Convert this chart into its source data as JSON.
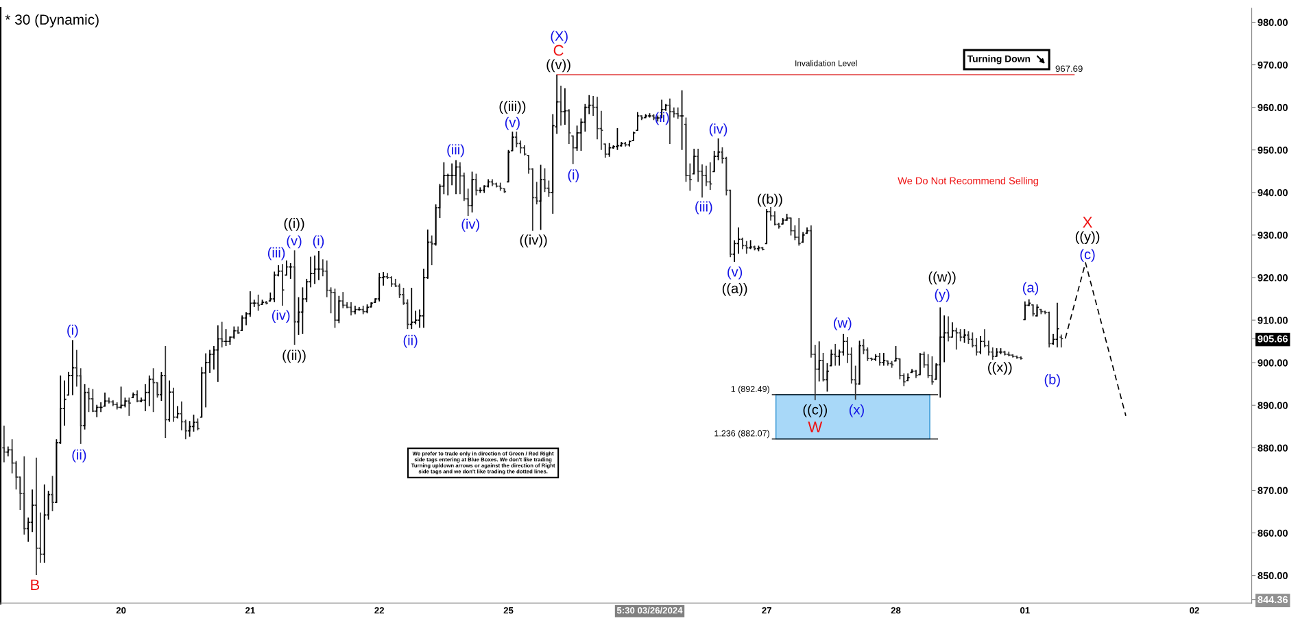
{
  "chart_data": {
    "type": "candlestick",
    "title": "* 30 (Dynamic)",
    "categories": [
      null,
      null,
      null,
      null,
      null,
      null,
      null,
      null,
      null,
      null,
      null,
      null,
      null,
      null,
      null,
      null,
      null,
      null,
      null,
      null,
      null,
      null,
      null,
      null,
      null,
      null,
      null,
      null,
      null,
      "20",
      null,
      null,
      null,
      null,
      null,
      null,
      null,
      null,
      null,
      null,
      null,
      null,
      null,
      null,
      null,
      null,
      null,
      null,
      null,
      null,
      null,
      null,
      null,
      null,
      null,
      null,
      null,
      null,
      null,
      null,
      null,
      "21",
      null,
      null,
      null,
      null,
      null,
      null,
      null,
      null,
      null,
      null,
      null,
      null,
      null,
      null,
      null,
      null,
      null,
      null,
      null,
      null,
      null,
      null,
      null,
      null,
      null,
      null,
      null,
      null,
      null,
      null,
      null,
      "22",
      null,
      null,
      null,
      null,
      null,
      null,
      null,
      null,
      null,
      null,
      null,
      null,
      null,
      null,
      null,
      null,
      null,
      null,
      null,
      null,
      null,
      null,
      null,
      null,
      null,
      null,
      null,
      null,
      null,
      null,
      null,
      "25",
      null,
      null,
      null,
      null,
      null,
      null,
      null,
      null,
      null,
      null,
      null,
      null,
      null,
      null,
      null,
      null,
      null,
      null,
      null,
      null,
      null,
      null,
      null,
      null,
      null,
      null,
      null,
      null,
      null,
      null,
      null,
      null,
      null,
      null,
      "5:30 03/26/2024",
      null,
      null,
      null,
      null,
      null,
      null,
      null,
      null,
      null,
      null,
      null,
      null,
      null,
      null,
      null,
      null,
      null,
      null,
      null,
      null,
      null,
      null,
      null,
      null,
      null,
      null,
      null,
      null,
      "27",
      null,
      null,
      null,
      null,
      null,
      null,
      null,
      null,
      null,
      null,
      null,
      null,
      null,
      null,
      null,
      null,
      null,
      null,
      null,
      null,
      null,
      null,
      null,
      null,
      null,
      null,
      null,
      null,
      null,
      null,
      null,
      "28",
      null,
      null,
      null,
      null,
      null,
      null,
      null,
      null,
      null,
      null,
      null,
      null,
      null,
      null,
      null,
      null,
      null,
      null,
      null,
      null,
      null,
      null,
      null,
      null,
      null,
      null,
      null,
      null,
      null,
      null,
      null,
      "01",
      null,
      null,
      null,
      null,
      null,
      null,
      null,
      null,
      null,
      null,
      null,
      null,
      null,
      null,
      null,
      null,
      null,
      null,
      null,
      null,
      null,
      null,
      null,
      null,
      null,
      null,
      null,
      null,
      null,
      null,
      null,
      null,
      null,
      null,
      null,
      null,
      null,
      null,
      null,
      null,
      null,
      "02",
      null,
      null,
      null,
      null,
      null,
      null,
      null,
      null,
      null,
      null,
      null,
      null,
      null,
      null
    ],
    "ohlc": [
      [
        880,
        885.2,
        876.6,
        879
      ],
      [
        879,
        880.3,
        878.0,
        879.5
      ],
      [
        879.5,
        882.0,
        874.0,
        876.4
      ],
      [
        876.4,
        876.9,
        870.2,
        873.1
      ],
      [
        873.1,
        873.1,
        865.4,
        869.3
      ],
      [
        869.3,
        878.0,
        859.6,
        861
      ],
      [
        861,
        863.6,
        857.9,
        862.5
      ],
      [
        862.5,
        870.2,
        860.2,
        866.5
      ],
      [
        866.5,
        877.7,
        850.1,
        856.4
      ],
      [
        856.4,
        864.8,
        853.0,
        855
      ],
      [
        855,
        871.4,
        853.0,
        864.2
      ],
      [
        864.2,
        869.9,
        863.1,
        869
      ],
      [
        869,
        873.4,
        865.1,
        867.2
      ],
      [
        867.2,
        882.0,
        867.0,
        881.2
      ],
      [
        881.2,
        897.0,
        880.9,
        889.2
      ],
      [
        889.2,
        895.8,
        885.2,
        891.4
      ],
      [
        892.4,
        897.8,
        892.4,
        897.0
      ],
      [
        897.0,
        905.3,
        892.4,
        898.8
      ],
      [
        898.8,
        903.0,
        894.4,
        896.9
      ],
      [
        896.9,
        898.7,
        880.9,
        885.2
      ],
      [
        885.2,
        895.0,
        884.3,
        893.0
      ],
      [
        893.0,
        894.1,
        888.4,
        891.5
      ],
      [
        891.5,
        893.8,
        888.4,
        888.6
      ],
      [
        888.6,
        890.1,
        887.2,
        889.5
      ],
      [
        889.5,
        890.7,
        888.4,
        889.5
      ],
      [
        889.8,
        893.0,
        889.8,
        891.0
      ],
      [
        891.0,
        891.8,
        890.4,
        890.8
      ],
      [
        890.8,
        891.2,
        889.8,
        890.2
      ],
      [
        890.2,
        890.7,
        889.0,
        889.5
      ],
      [
        889.5,
        894.4,
        889.2,
        890.0
      ],
      [
        890.0,
        891.8,
        889.5,
        891.0
      ],
      [
        891.0,
        891.8,
        887.5,
        890.5
      ],
      [
        891.8,
        893.0,
        891.8,
        892.5
      ],
      [
        892.5,
        893.5,
        890.7,
        891.0
      ],
      [
        891.0,
        891.8,
        890.7,
        891.2
      ],
      [
        891.2,
        895.0,
        888.6,
        893.0
      ],
      [
        893.0,
        897.0,
        889.8,
        896.1
      ],
      [
        896.1,
        898.7,
        888.4,
        895.3
      ],
      [
        895.3,
        895.3,
        891.8,
        892.5
      ],
      [
        892.5,
        897.8,
        891.0,
        897.0
      ],
      [
        897.0,
        903.9,
        882.3,
        886.6
      ],
      [
        886.6,
        895.8,
        886.1,
        893.1
      ],
      [
        893.1,
        894.1,
        886.1,
        887.2
      ],
      [
        887.2,
        889.8,
        886.9,
        888.0
      ],
      [
        888.0,
        890.9,
        884.1,
        886.1
      ],
      [
        886.1,
        886.6,
        882.0,
        884.0
      ],
      [
        884.0,
        886.3,
        882.6,
        885.0
      ],
      [
        885.0,
        887.8,
        883.8,
        886.0
      ],
      [
        886.0,
        886.9,
        884.1,
        884.5
      ],
      [
        887.2,
        899.0,
        887.2,
        897.6
      ],
      [
        897.6,
        902.2,
        889.5,
        900.0
      ],
      [
        900.0,
        903.0,
        897.6,
        902.0
      ],
      [
        902.0,
        903.9,
        898.4,
        903.0
      ],
      [
        903.0,
        908.8,
        895.5,
        905.6
      ],
      [
        905.6,
        909.6,
        903.6,
        905.0
      ],
      [
        905.0,
        907.9,
        903.9,
        905.0
      ],
      [
        905.0,
        906.2,
        904.2,
        906.0
      ],
      [
        906.0,
        908.5,
        905.6,
        907.5
      ],
      [
        907.5,
        908.5,
        906.8,
        907.0
      ],
      [
        907.6,
        911.1,
        907.6,
        910.5
      ],
      [
        910.5,
        911.9,
        908.8,
        911.5
      ],
      [
        911.5,
        916.8,
        910.8,
        914.0
      ],
      [
        914.0,
        914.8,
        913.1,
        914.0
      ],
      [
        914.0,
        916.0,
        912.2,
        913.5
      ],
      [
        913.7,
        914.8,
        913.7,
        914.2
      ],
      [
        914.2,
        914.5,
        913.7,
        914.0
      ],
      [
        914.5,
        916.5,
        914.5,
        915.0
      ],
      [
        915.0,
        921.4,
        914.2,
        920.6
      ],
      [
        920.6,
        922.9,
        920.3,
        921.5
      ],
      [
        921.5,
        923.2,
        913.4,
        917.1
      ],
      [
        920.6,
        924.0,
        920.6,
        922.5
      ],
      [
        922.5,
        923.4,
        919.7,
        922.5
      ],
      [
        922.5,
        926.4,
        904.2,
        909.6
      ],
      [
        909.6,
        915.4,
        906.5,
        911.9
      ],
      [
        911.9,
        917.7,
        906.8,
        915.0
      ],
      [
        915.0,
        919.7,
        914.2,
        919.0
      ],
      [
        919.0,
        924.9,
        917.7,
        921.0
      ],
      [
        921.0,
        925.2,
        918.5,
        922.0
      ],
      [
        922.0,
        926.3,
        919.4,
        922.0
      ],
      [
        922.0,
        924.3,
        920.3,
        921.5
      ],
      [
        921.5,
        924.0,
        915.4,
        917.0
      ],
      [
        917.0,
        917.7,
        911.6,
        916.5
      ],
      [
        916.5,
        917.4,
        908.2,
        910.0
      ],
      [
        910.0,
        915.7,
        909.3,
        914.5
      ],
      [
        914.5,
        916.6,
        912.8,
        913.5
      ],
      [
        913.5,
        914.2,
        912.8,
        913.0
      ],
      [
        913.0,
        914.2,
        911.1,
        912.0
      ],
      [
        912.0,
        913.4,
        911.4,
        912.5
      ],
      [
        912.5,
        913.1,
        912.2,
        912.5
      ],
      [
        912.5,
        913.4,
        911.4,
        912.0
      ],
      [
        912.0,
        913.7,
        911.6,
        913.0
      ],
      [
        913.1,
        914.2,
        913.1,
        914.0
      ],
      [
        914.2,
        915.1,
        914.2,
        915.0
      ],
      [
        915.0,
        921.1,
        914.4,
        920.0
      ],
      [
        920.0,
        921.3,
        918.1,
        920.2
      ],
      [
        920.2,
        921.1,
        919.7,
        920.0
      ],
      [
        920.0,
        920.3,
        917.8,
        918.5
      ],
      [
        918.5,
        919.7,
        917.8,
        918.0
      ],
      [
        918.0,
        918.6,
        915.2,
        916.0
      ],
      [
        916.0,
        917.6,
        913.6,
        914.0
      ],
      [
        914.0,
        914.9,
        907.9,
        909.0
      ],
      [
        909.0,
        917.6,
        907.9,
        909.5
      ],
      [
        909.5,
        912.2,
        909.0,
        910.0
      ],
      [
        910.0,
        912.5,
        908.2,
        911.0
      ],
      [
        911.0,
        922.1,
        908.2,
        920.0
      ],
      [
        920.0,
        931.3,
        919.7,
        928.3
      ],
      [
        928.3,
        929.9,
        922.9,
        927.9
      ],
      [
        927.9,
        937.2,
        927.5,
        936.4
      ],
      [
        936.4,
        942.0,
        934.0,
        941.5
      ],
      [
        941.5,
        947.1,
        939.6,
        944.0
      ],
      [
        944.0,
        944.4,
        939.3,
        944.0
      ],
      [
        944.0,
        946.8,
        941.7,
        944.0
      ],
      [
        944.0,
        947.6,
        939.6,
        946.0
      ],
      [
        946.0,
        947.1,
        939.6,
        943.9
      ],
      [
        943.9,
        944.7,
        938.0,
        938.5
      ],
      [
        938.5,
        940.9,
        934.5,
        936.9
      ],
      [
        936.9,
        944.9,
        935.3,
        943.0
      ],
      [
        943.0,
        944.4,
        939.3,
        940.5
      ],
      [
        940.5,
        941.2,
        939.9,
        940.5
      ],
      [
        940.5,
        941.7,
        939.9,
        941.5
      ],
      [
        941.5,
        943.1,
        941.2,
        942.5
      ],
      [
        942.5,
        943.1,
        941.5,
        942.0
      ],
      [
        942.0,
        942.3,
        941.2,
        941.5
      ],
      [
        941.5,
        942.3,
        940.4,
        941.0
      ],
      [
        940.9,
        940.9,
        939.9,
        940.2
      ],
      [
        942.5,
        950.0,
        942.5,
        949.5
      ],
      [
        949.8,
        954.3,
        949.8,
        953.0
      ],
      [
        953.0,
        954.3,
        950.6,
        951.5
      ],
      [
        951.5,
        952.2,
        949.2,
        950.5
      ],
      [
        950.5,
        951.1,
        948.7,
        949.0
      ],
      [
        948.7,
        948.7,
        944.4,
        945.5
      ],
      [
        945.5,
        945.7,
        931.0,
        938.8
      ],
      [
        938.8,
        942.5,
        937.2,
        938.0
      ],
      [
        938.0,
        946.5,
        931.2,
        943.0
      ],
      [
        943.0,
        945.7,
        940.1,
        941.0
      ],
      [
        941.0,
        942.8,
        939.0,
        940.0
      ],
      [
        940.0,
        958.4,
        935.0,
        955.7
      ],
      [
        955.4,
        967.69,
        953.8,
        961.3
      ],
      [
        961.3,
        965.1,
        955.7,
        959.0
      ],
      [
        959.0,
        964.5,
        955.9,
        959.2
      ],
      [
        959.2,
        959.6,
        951.4,
        954.0
      ],
      [
        953.3,
        953.3,
        946.7,
        950.5
      ],
      [
        950.5,
        955.7,
        949.8,
        954.0
      ],
      [
        954.0,
        957.4,
        949.8,
        956.5
      ],
      [
        956.5,
        960.8,
        954.3,
        960.0
      ],
      [
        960.0,
        962.9,
        958.4,
        960.5
      ],
      [
        960.5,
        962.7,
        958.0,
        960.0
      ],
      [
        960.0,
        962.5,
        952.5,
        955.0
      ],
      [
        955.0,
        959.2,
        950.0,
        954.6
      ],
      [
        951.4,
        951.4,
        948.2,
        949.0
      ],
      [
        949.0,
        951.6,
        948.4,
        950.5
      ],
      [
        950.5,
        951.1,
        950.3,
        950.8
      ],
      [
        950.8,
        955.1,
        950.0,
        951.0
      ],
      [
        951.0,
        951.9,
        950.8,
        951.5
      ],
      [
        951.5,
        951.9,
        950.8,
        951.2
      ],
      [
        951.2,
        952.2,
        950.8,
        952.0
      ],
      [
        952.2,
        954.3,
        952.2,
        954.0
      ],
      [
        954.6,
        958.9,
        954.6,
        958.0
      ],
      [
        958.0,
        958.1,
        957.0,
        957.5
      ],
      [
        957.6,
        958.4,
        957.6,
        958.0
      ],
      [
        958.0,
        958.6,
        957.6,
        958.0
      ],
      [
        958.0,
        958.4,
        957.0,
        957.5
      ],
      [
        957.5,
        958.1,
        956.7,
        957.5
      ],
      [
        957.6,
        961.8,
        957.6,
        959.5
      ],
      [
        959.5,
        960.8,
        959.2,
        960.5
      ],
      [
        960.5,
        962.1,
        951.4,
        959.0
      ],
      [
        959.0,
        960.0,
        957.6,
        958.5
      ],
      [
        958.5,
        960.0,
        957.3,
        958.0
      ],
      [
        958.0,
        964.0,
        950.0,
        958.0
      ],
      [
        956.0,
        957.6,
        942.5,
        944.0
      ],
      [
        944.0,
        946.8,
        940.4,
        943.0
      ],
      [
        944.4,
        950.3,
        944.4,
        948.5
      ],
      [
        948.5,
        950.3,
        942.5,
        945.0
      ],
      [
        945.0,
        946.6,
        938.8,
        944.0
      ],
      [
        944.0,
        946.3,
        941.5,
        942.5
      ],
      [
        942.5,
        947.1,
        940.6,
        942.0
      ],
      [
        944.9,
        949.8,
        944.9,
        948.5
      ],
      [
        948.5,
        952.7,
        947.6,
        949.5
      ],
      [
        949.5,
        950.6,
        946.8,
        948.0
      ],
      [
        948.0,
        948.4,
        939.3,
        940.5
      ],
      [
        940.5,
        940.6,
        924.8,
        925.5
      ],
      [
        925.5,
        928.8,
        923.7,
        928.0
      ],
      [
        928.0,
        931.8,
        925.6,
        929.0
      ],
      [
        929.0,
        929.4,
        926.7,
        927.5
      ],
      [
        927.5,
        928.6,
        925.6,
        927.0
      ],
      [
        927.0,
        928.8,
        926.7,
        927.2
      ],
      [
        927.2,
        927.5,
        926.4,
        926.8
      ],
      [
        926.8,
        927.5,
        926.2,
        927.0
      ],
      [
        927.0,
        927.2,
        926.4,
        926.6
      ],
      [
        928.0,
        936.1,
        928.0,
        935.5
      ],
      [
        935.5,
        936.6,
        933.4,
        934.5
      ],
      [
        934.5,
        935.6,
        932.3,
        932.5
      ],
      [
        932.5,
        932.9,
        931.5,
        932.0
      ],
      [
        932.6,
        934.0,
        932.6,
        933.5
      ],
      [
        933.5,
        935.0,
        933.4,
        934.0
      ],
      [
        934.0,
        934.0,
        929.9,
        931.0
      ],
      [
        931.0,
        932.3,
        928.8,
        929.5
      ],
      [
        929.5,
        934.0,
        927.5,
        928.0
      ],
      [
        928.3,
        930.7,
        928.3,
        930.0
      ],
      [
        930.4,
        931.8,
        930.4,
        931.0
      ],
      [
        931.0,
        932.3,
        901.2,
        902.0
      ],
      [
        902.0,
        904.2,
        891.2,
        898.5
      ],
      [
        898.5,
        905.0,
        895.6,
        900.5
      ],
      [
        900.5,
        902.3,
        895.6,
        896.0
      ],
      [
        896.0,
        899.9,
        893.2,
        898.0
      ],
      [
        899.3,
        903.1,
        899.3,
        902.0
      ],
      [
        902.0,
        904.4,
        899.3,
        901.5
      ],
      [
        901.5,
        903.1,
        899.3,
        902.5
      ],
      [
        902.5,
        906.8,
        901.7,
        905.0
      ],
      [
        905.0,
        906.0,
        899.9,
        902.0
      ],
      [
        902.0,
        903.6,
        895.1,
        896.0
      ],
      [
        896.0,
        899.3,
        891.3,
        895.0
      ],
      [
        895.0,
        905.2,
        894.8,
        904.0
      ],
      [
        904.0,
        905.5,
        902.0,
        903.0
      ],
      [
        903.0,
        903.6,
        900.4,
        901.0
      ],
      [
        901.0,
        901.2,
        900.4,
        900.8
      ],
      [
        900.8,
        902.0,
        900.4,
        901.5
      ],
      [
        901.5,
        902.3,
        899.3,
        900.0
      ],
      [
        900.0,
        902.3,
        899.3,
        900.5
      ],
      [
        900.4,
        900.4,
        899.3,
        899.8
      ],
      [
        899.8,
        900.4,
        898.8,
        899.5
      ],
      [
        900.4,
        903.9,
        900.4,
        901.0
      ],
      [
        900.9,
        900.9,
        896.1,
        897.0
      ],
      [
        897.0,
        897.5,
        894.5,
        895.5
      ],
      [
        895.8,
        897.5,
        895.8,
        896.5
      ],
      [
        897.7,
        898.5,
        897.7,
        898.0
      ],
      [
        898.0,
        898.3,
        896.4,
        897.0
      ],
      [
        897.2,
        902.3,
        897.2,
        902.0
      ],
      [
        902.0,
        902.6,
        898.8,
        899.5
      ],
      [
        899.5,
        902.0,
        896.4,
        897.0
      ],
      [
        897.0,
        901.5,
        894.8,
        895.5
      ],
      [
        896.1,
        899.9,
        896.1,
        899.5
      ],
      [
        899.5,
        913.0,
        891.8,
        906.0
      ],
      [
        906.0,
        911.1,
        900.1,
        907.0
      ],
      [
        907.0,
        910.9,
        905.0,
        906.0
      ],
      [
        906.0,
        909.5,
        906.0,
        907.5
      ],
      [
        907.5,
        908.2,
        903.1,
        907.0
      ],
      [
        907.0,
        907.9,
        905.0,
        906.0
      ],
      [
        906.0,
        907.9,
        904.7,
        906.5
      ],
      [
        906.5,
        907.4,
        904.4,
        905.5
      ],
      [
        905.5,
        907.1,
        903.6,
        904.0
      ],
      [
        904.0,
        905.8,
        901.7,
        902.5
      ],
      [
        902.5,
        906.3,
        902.0,
        905.0
      ],
      [
        905.0,
        907.9,
        903.6,
        904.0
      ],
      [
        904.0,
        905.2,
        901.7,
        902.5
      ],
      [
        902.5,
        903.6,
        900.7,
        901.5
      ],
      [
        901.5,
        903.4,
        901.5,
        902.5
      ],
      [
        902.5,
        903.4,
        902.0,
        902.5
      ],
      [
        902.5,
        902.8,
        901.7,
        902.0
      ],
      [
        902.0,
        902.6,
        901.5,
        901.8
      ],
      [
        901.8,
        902.0,
        901.2,
        901.5
      ],
      [
        901.5,
        901.7,
        900.9,
        901.2
      ],
      [
        901.2,
        901.5,
        900.7,
        901.0
      ],
      [
        910.1,
        914.4,
        910.1,
        913.5
      ],
      [
        913.5,
        914.9,
        913.3,
        914.0
      ],
      [
        913.6,
        913.6,
        910.9,
        911.5
      ],
      [
        911.0,
        913.7,
        910.9,
        913.0
      ],
      [
        912.5,
        912.5,
        911.4,
        912.0
      ],
      [
        912.0,
        912.2,
        911.4,
        911.8
      ],
      [
        911.8,
        912.0,
        903.6,
        904.5
      ],
      [
        904.5,
        906.8,
        904.2,
        905.5
      ],
      [
        905.5,
        914.1,
        903.6,
        908.0
      ],
      [
        906.0,
        906.6,
        903.6,
        905.66
      ],
      null,
      null,
      null,
      null,
      null,
      null,
      null,
      null,
      null,
      null,
      null,
      null,
      null,
      null,
      null,
      null,
      null,
      null,
      null,
      null,
      null,
      null,
      null,
      null,
      null,
      null,
      null,
      null,
      null,
      null,
      null,
      null,
      null,
      null,
      null,
      null,
      null,
      null,
      null,
      null,
      null,
      null,
      null,
      null,
      null,
      null,
      null
    ],
    "colors": [
      "#333333",
      "#000000",
      "#333333",
      "#333333",
      "#333333",
      "#333333",
      "#000000",
      "#000000",
      "#333333",
      "#333333",
      "#000000",
      "#000000",
      "#333333",
      "#000000",
      "#000000",
      "#000000",
      "#000000",
      "#000000",
      "#333333",
      "#333333",
      "#000000",
      "#333333",
      "#333333",
      "#000000",
      "#000000",
      "#000000",
      "#333333",
      "#333333",
      "#333333",
      "#000000",
      "#000000",
      "#333333",
      "#000000",
      "#333333",
      "#000000",
      "#000000",
      "#000000",
      "#333333",
      "#333333",
      "#000000",
      "#333333",
      "#000000",
      "#333333",
      "#000000",
      "#333333",
      "#333333",
      "#000000",
      "#000000",
      "#333333",
      "#000000",
      "#000000",
      "#000000",
      "#000000",
      "#000000",
      "#333333",
      "#000000",
      "#000000",
      "#000000",
      "#333333",
      "#000000",
      "#000000",
      "#000000",
      "#000000",
      "#333333",
      "#000000",
      "#333333",
      "#000000",
      "#000000",
      "#000000",
      "#333333",
      "#000000",
      "#000000",
      "#333333",
      "#000000",
      "#000000",
      "#000000",
      "#000000",
      "#000000",
      "#000000",
      "#333333",
      "#333333",
      "#333333",
      "#333333",
      "#000000",
      "#333333",
      "#333333",
      "#333333",
      "#000000",
      "#000000",
      "#333333",
      "#000000",
      "#000000",
      "#000000",
      "#000000",
      "#000000",
      "#333333",
      "#333333",
      "#333333",
      "#333333",
      "#333333",
      "#333333",
      "#000000",
      "#000000",
      "#000000",
      "#000000",
      "#000000",
      "#333333",
      "#000000",
      "#000000",
      "#000000",
      "#000000",
      "#000000",
      "#000000",
      "#333333",
      "#333333",
      "#333333",
      "#000000",
      "#333333",
      "#000000",
      "#000000",
      "#000000",
      "#333333",
      "#333333",
      "#333333",
      "#333333",
      "#000000",
      "#000000",
      "#333333",
      "#333333",
      "#333333",
      "#333333",
      "#333333",
      "#333333",
      "#000000",
      "#333333",
      "#333333",
      "#000000",
      "#000000",
      "#333333",
      "#000000",
      "#333333",
      "#333333",
      "#000000",
      "#000000",
      "#000000",
      "#000000",
      "#333333",
      "#333333",
      "#333333",
      "#333333",
      "#000000",
      "#000000",
      "#000000",
      "#000000",
      "#333333",
      "#000000",
      "#000000",
      "#000000",
      "#333333",
      "#000000",
      "#000000",
      "#333333",
      "#000000",
      "#000000",
      "#000000",
      "#333333",
      "#333333",
      "#333333",
      "#000000",
      "#333333",
      "#333333",
      "#000000",
      "#333333",
      "#333333",
      "#333333",
      "#333333",
      "#000000",
      "#000000",
      "#333333",
      "#333333",
      "#333333",
      "#000000",
      "#000000",
      "#333333",
      "#333333",
      "#000000",
      "#333333",
      "#000000",
      "#333333",
      "#000000",
      "#333333",
      "#333333",
      "#333333",
      "#000000",
      "#000000",
      "#333333",
      "#333333",
      "#333333",
      "#000000",
      "#000000",
      "#333333",
      "#333333",
      "#000000",
      "#333333",
      "#000000",
      "#000000",
      "#333333",
      "#000000",
      "#000000",
      "#333333",
      "#333333",
      "#333333",
      "#000000",
      "#333333",
      "#333333",
      "#333333",
      "#000000",
      "#333333",
      "#000000",
      "#333333",
      "#333333",
      "#000000",
      "#333333",
      "#333333",
      "#000000",
      "#000000",
      "#333333",
      "#000000",
      "#333333",
      "#333333",
      "#333333",
      "#000000",
      "#000000",
      "#000000",
      "#333333",
      "#000000",
      "#333333",
      "#333333",
      "#000000",
      "#333333",
      "#333333",
      "#333333",
      "#000000",
      "#333333",
      "#333333",
      "#333333",
      "#000000",
      "#000000",
      "#333333",
      "#333333",
      "#333333",
      "#333333",
      "#333333",
      "#000000",
      "#000000",
      "#333333",
      "#000000",
      "#333333",
      "#333333",
      "#333333",
      "#000000",
      "#000000",
      "#333333",
      null,
      null,
      null,
      null,
      null,
      null,
      null,
      null,
      null,
      null,
      null,
      null,
      null,
      null,
      null,
      null,
      null,
      null,
      null,
      null,
      null,
      null,
      null,
      null,
      null,
      null,
      null,
      null,
      null,
      null,
      null,
      null,
      null,
      null,
      null,
      null,
      null,
      null,
      null,
      null,
      null,
      null,
      null,
      null,
      null,
      null,
      null
    ],
    "series": [
      {
        "type": "line",
        "color": "#000000",
        "line_style": "dashed",
        "values": [
          null,
          null,
          null,
          null,
          null,
          null,
          null,
          null,
          null,
          null,
          null,
          null,
          null,
          null,
          null,
          null,
          null,
          null,
          null,
          null,
          null,
          null,
          null,
          null,
          null,
          null,
          null,
          null,
          null,
          null,
          null,
          null,
          null,
          null,
          null,
          null,
          null,
          null,
          null,
          null,
          null,
          null,
          null,
          null,
          null,
          null,
          null,
          null,
          null,
          null,
          null,
          null,
          null,
          null,
          null,
          null,
          null,
          null,
          null,
          null,
          null,
          null,
          null,
          null,
          null,
          null,
          null,
          null,
          null,
          null,
          null,
          null,
          null,
          null,
          null,
          null,
          null,
          null,
          null,
          null,
          null,
          null,
          null,
          null,
          null,
          null,
          null,
          null,
          null,
          null,
          null,
          null,
          null,
          null,
          null,
          null,
          null,
          null,
          null,
          null,
          null,
          null,
          null,
          null,
          null,
          null,
          null,
          null,
          null,
          null,
          null,
          null,
          null,
          null,
          null,
          null,
          null,
          null,
          null,
          null,
          null,
          null,
          null,
          null,
          null,
          null,
          null,
          null,
          null,
          null,
          null,
          null,
          null,
          null,
          null,
          null,
          null,
          null,
          null,
          null,
          null,
          null,
          null,
          null,
          null,
          null,
          null,
          null,
          null,
          null,
          null,
          null,
          null,
          null,
          null,
          null,
          null,
          null,
          null,
          null,
          null,
          null,
          null,
          null,
          null,
          null,
          null,
          null,
          null,
          null,
          null,
          null,
          null,
          null,
          null,
          null,
          null,
          null,
          null,
          null,
          null,
          null,
          null,
          null,
          null,
          null,
          null,
          null,
          null,
          null,
          null,
          null,
          null,
          null,
          null,
          null,
          null,
          null,
          null,
          null,
          null,
          null,
          null,
          null,
          null,
          null,
          null,
          null,
          null,
          null,
          null,
          null,
          null,
          null,
          null,
          null,
          null,
          null,
          null,
          null,
          null,
          null,
          null,
          null,
          null,
          null,
          null,
          null,
          null,
          null,
          null,
          null,
          null,
          null,
          null,
          null,
          null,
          null,
          null,
          null,
          null,
          null,
          null,
          null,
          null,
          null,
          null,
          null,
          null,
          null,
          null,
          null,
          null,
          null,
          null,
          null,
          null,
          null,
          null,
          null,
          null,
          null,
          null,
          905.7,
          null,
          null,
          null,
          null,
          923.5,
          null,
          null,
          null,
          null,
          null,
          null,
          null,
          null,
          null,
          887.5,
          null,
          null,
          null,
          null,
          null,
          null,
          null,
          null,
          null,
          null,
          null,
          null,
          null,
          null,
          null,
          null,
          null,
          null,
          null,
          null,
          null,
          null,
          null,
          null,
          null,
          null,
          null,
          null,
          null,
          null,
          null
        ]
      }
    ],
    "ylim": [
      843.5,
      983.3
    ],
    "yticks": [
      {
        "value": 850,
        "label": "850.00"
      },
      {
        "value": 860,
        "label": "860.00"
      },
      {
        "value": 870,
        "label": "870.00"
      },
      {
        "value": 880,
        "label": "880.00"
      },
      {
        "value": 890,
        "label": "890.00"
      },
      {
        "value": 900,
        "label": "900.00"
      },
      {
        "value": 910,
        "label": "910.00"
      },
      {
        "value": 920,
        "label": "920.00"
      },
      {
        "value": 930,
        "label": "930.00"
      },
      {
        "value": 940,
        "label": "940.00"
      },
      {
        "value": 950,
        "label": "950.00"
      },
      {
        "value": 960,
        "label": "960.00"
      },
      {
        "value": 970,
        "label": "970.00"
      },
      {
        "value": 980,
        "label": "980.00"
      },
      {
        "value": 905.66,
        "label": "905.66"
      },
      {
        "value": 844.36,
        "label": "844.36"
      }
    ],
    "ref_lines": [
      {
        "axis": "y",
        "value": 967.69,
        "label": "967.69",
        "color": "#e86a6a"
      },
      {
        "axis": "y",
        "value": 892.49,
        "label": "1 (892.49)",
        "color": "#000000"
      },
      {
        "axis": "y",
        "value": 882.07,
        "label": "1.236 (882.07)",
        "color": "#000000"
      }
    ],
    "bands": [
      {
        "axis": "y",
        "from": 882.07,
        "to": 892.49,
        "color": "#a8d8f8"
      }
    ],
    "annotations": [
      "We Do Not Recommend Selling",
      "We prefer to trade only in direction of Green / Red Right\nside tags entering at Blue Boxes. We don't like trading\nTurning up/down arrows or against the direction of Right\nside tags and we don't like trading the dotted lines.",
      "Turning Down",
      "Invalidation Level",
      "B",
      "(i)",
      "(ii)",
      "(iii)",
      "(iv)",
      "((i))",
      "(v)",
      "(i)",
      "((ii))",
      "(ii)",
      "(iii)",
      "(iv)",
      "((iii))",
      "(v)",
      "((iv))",
      "(X)",
      "C",
      "((v))",
      "(i)",
      "(ii)",
      "(iii)",
      "(iv)",
      "(v)",
      "((a))",
      "((b))",
      "((c))",
      "W",
      "(w)",
      "(x)",
      "((w))",
      "(y)",
      "((x))",
      "(a)",
      "(b)",
      "X",
      "((y))",
      "(c)"
    ]
  }
}
